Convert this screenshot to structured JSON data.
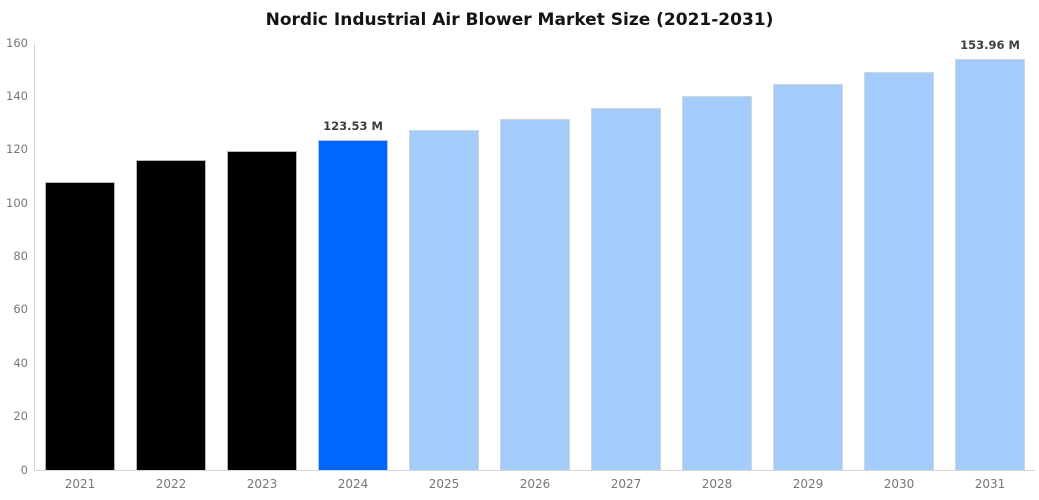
{
  "figure": {
    "background": "#ffffff"
  },
  "chart_data": {
    "type": "bar",
    "title": "Nordic Industrial Air Blower Market Size (2021-2031)",
    "unit": "M",
    "categories": [
      "2021",
      "2022",
      "2023",
      "2024",
      "2025",
      "2026",
      "2027",
      "2028",
      "2029",
      "2030",
      "2031"
    ],
    "values": [
      108.0,
      116.0,
      119.6,
      123.53,
      127.48,
      131.56,
      135.77,
      140.11,
      144.59,
      149.22,
      153.96
    ],
    "bar_colors": [
      "#000000",
      "#000000",
      "#000000",
      "#0066ff",
      "#a3ccfa",
      "#a3ccfa",
      "#a3ccfa",
      "#a3ccfa",
      "#a3ccfa",
      "#a3ccfa",
      "#a3ccfa"
    ],
    "annotations": [
      {
        "category": "2024",
        "text": "123.53 M"
      },
      {
        "category": "2031",
        "text": "153.96 M"
      }
    ],
    "xlabel": "",
    "ylabel": "",
    "ylim": [
      0,
      160
    ],
    "yticks": [
      0,
      20,
      40,
      60,
      80,
      100,
      120,
      140,
      160
    ],
    "grid": false,
    "legend": null,
    "colors": {
      "axis": "#d6d6d6",
      "tick_label": "#777777",
      "title": "#141414",
      "annotation": "#3d3d3d",
      "highlight_bar": "#0066ff",
      "historical_bar": "#000000",
      "forecast_bar": "#a3ccfa"
    }
  }
}
